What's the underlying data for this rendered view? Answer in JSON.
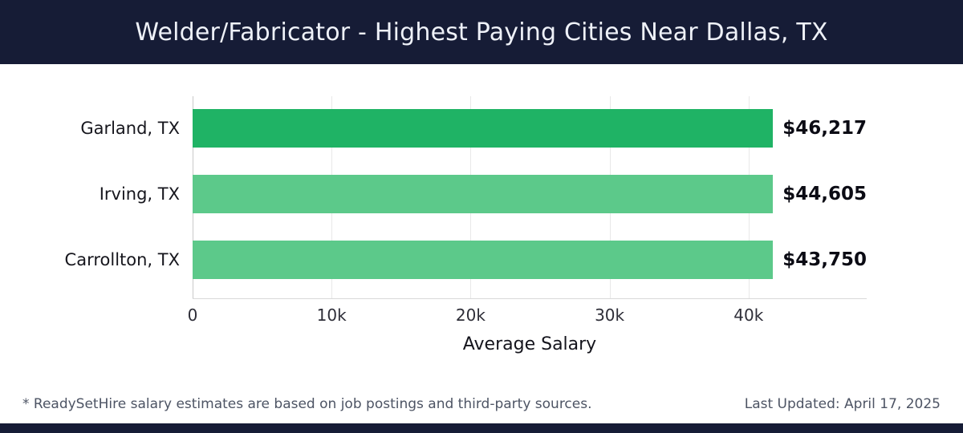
{
  "chart_data": {
    "type": "bar",
    "orientation": "horizontal",
    "title": "Welder/Fabricator - Highest Paying Cities Near Dallas, TX",
    "categories": [
      "Garland, TX",
      "Irving, TX",
      "Carrollton, TX"
    ],
    "values": [
      46217,
      44605,
      43750
    ],
    "value_labels": [
      "$46,217",
      "$44,605",
      "$43,750"
    ],
    "xlabel": "Average Salary",
    "xticks": [
      0,
      10000,
      20000,
      30000,
      40000
    ],
    "xtick_labels": [
      "0",
      "10k",
      "20k",
      "30k",
      "40k"
    ],
    "xlim": [
      0,
      48500
    ],
    "bar_colors": [
      "#1fb365",
      "#5cc98a",
      "#5cc98a"
    ],
    "grid": "vertical-light",
    "legend": false
  },
  "colors": {
    "header_bg": "#161c36",
    "bar_primary": "#1fb365",
    "bar_secondary": "#5cc98a",
    "title_text": "#eef1f8"
  },
  "footer": {
    "note": "* ReadySetHire salary estimates are based on job postings and third-party sources.",
    "last_updated": "Last Updated: April 17, 2025"
  }
}
